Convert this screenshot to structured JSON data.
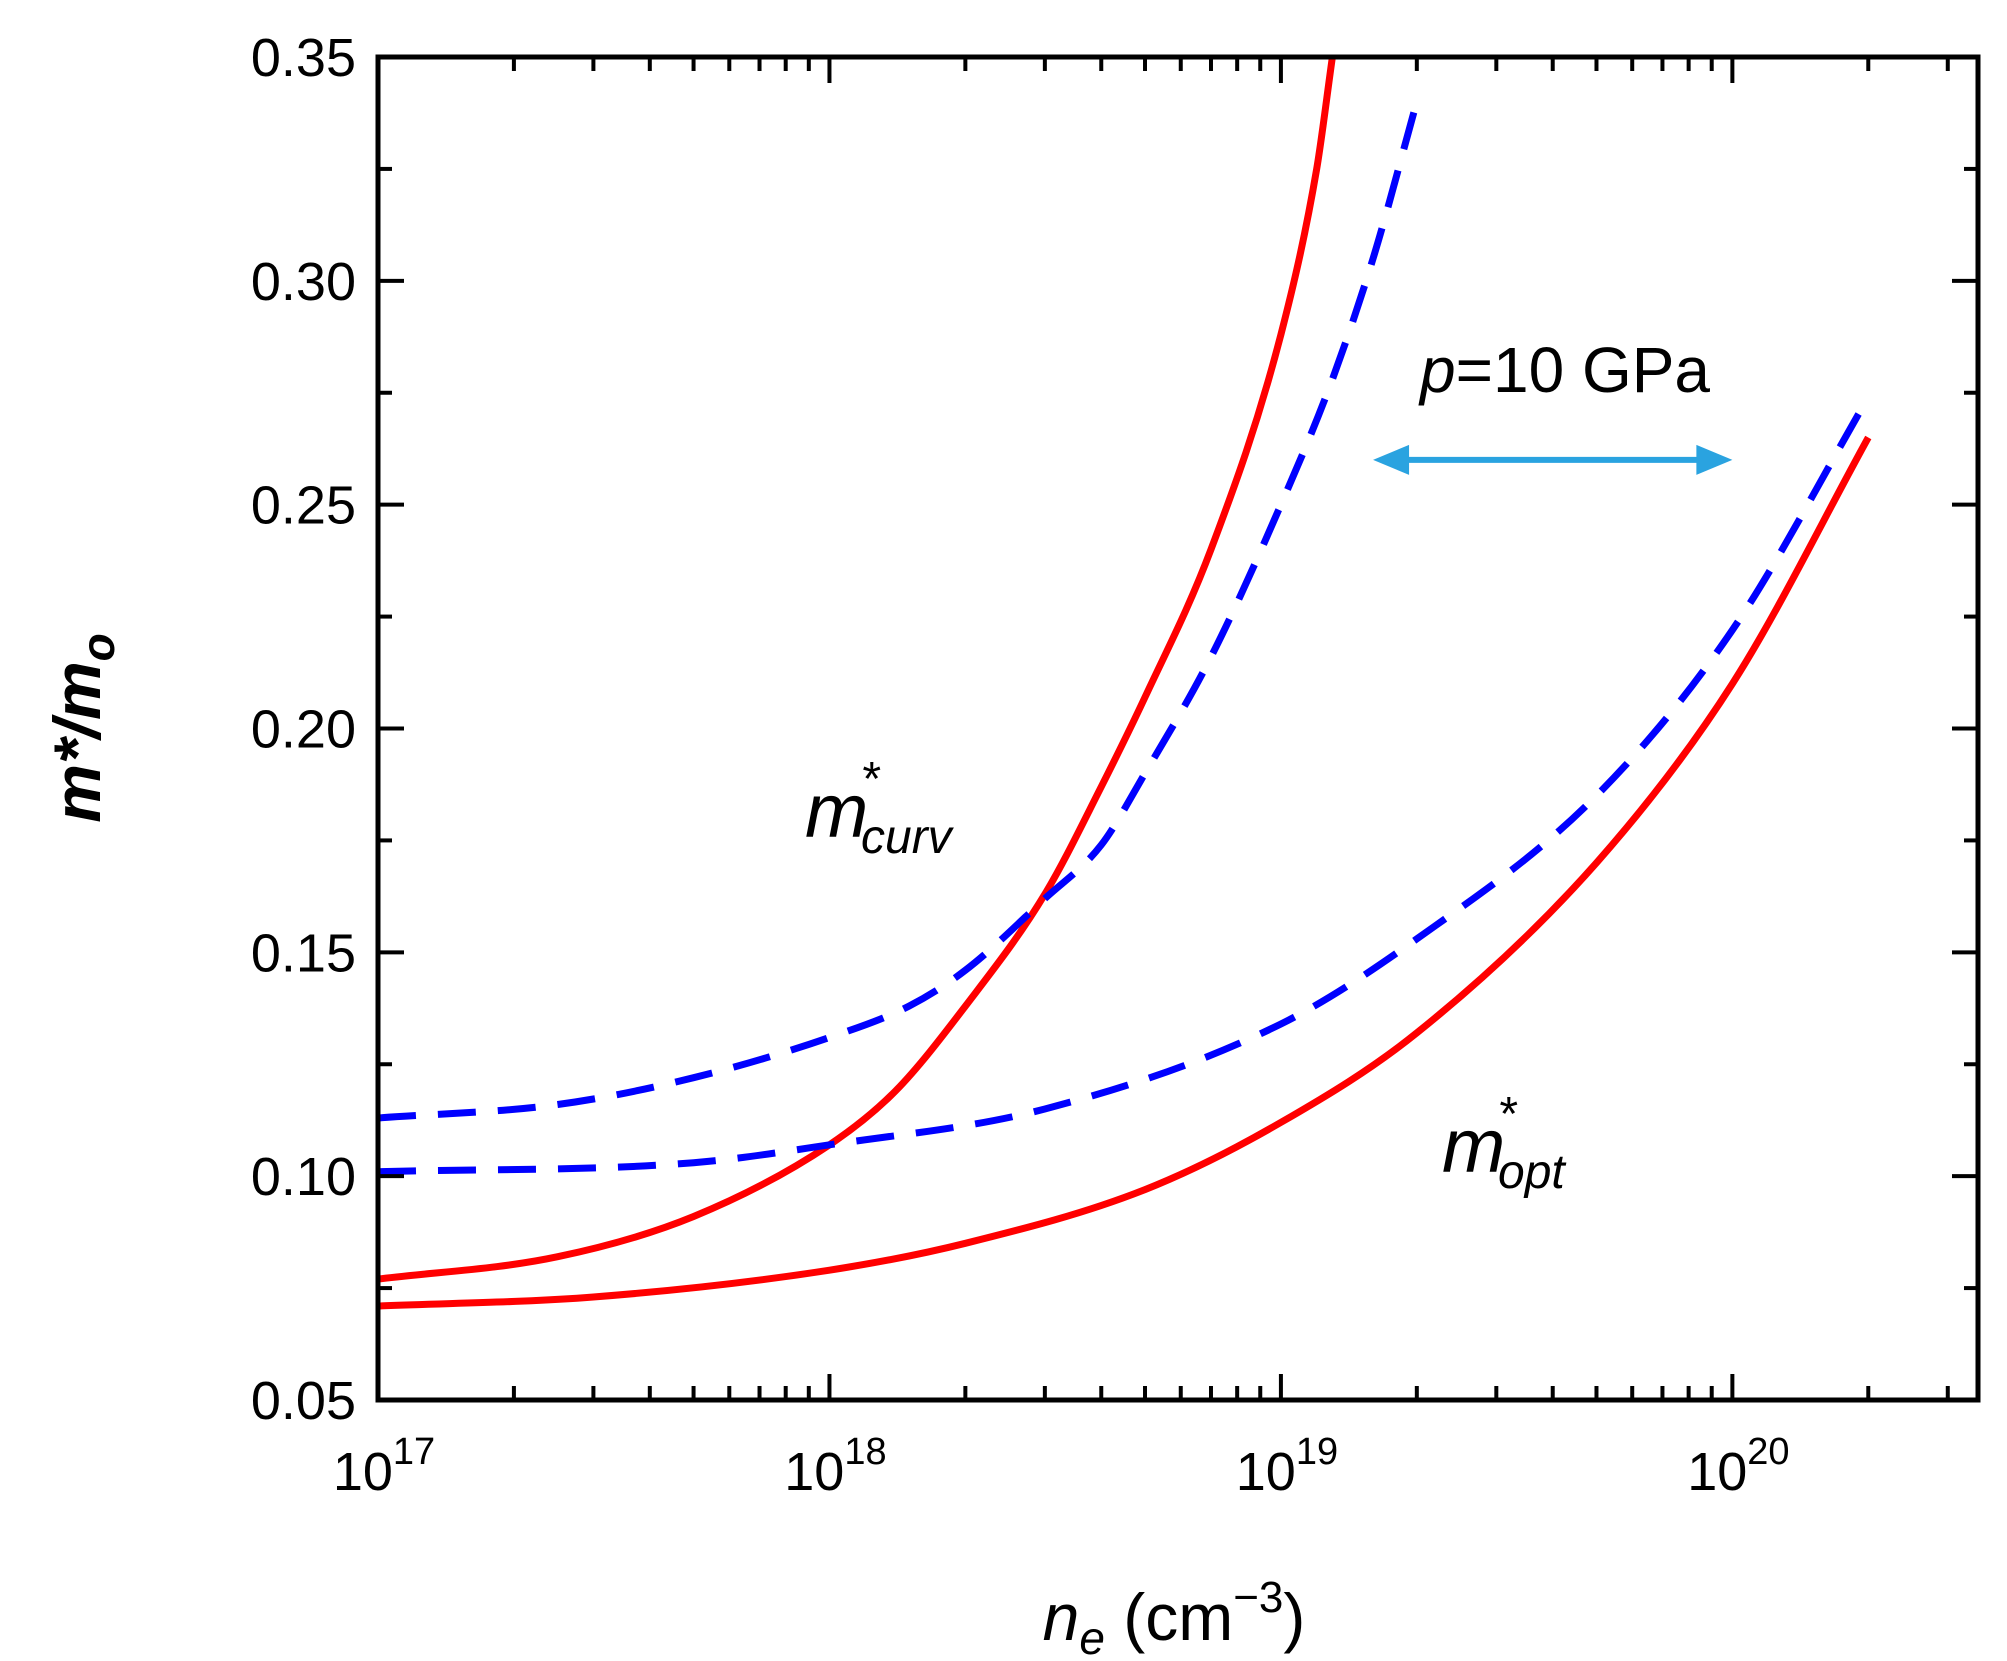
{
  "chart_data": {
    "type": "line",
    "title": "",
    "xscale": "log",
    "xlim": [
      1e+17,
      3.5e+20
    ],
    "ylim": [
      0.05,
      0.35
    ],
    "xlabel": {
      "main": "n",
      "sub": "e",
      "unit": " (cm",
      "sup": "−3",
      "close": ")"
    },
    "ylabel": {
      "main": "m*/m",
      "sub": "o"
    },
    "xticks": [
      {
        "value": 1e+17,
        "base": "10",
        "exp": "17"
      },
      {
        "value": 1e+18,
        "base": "10",
        "exp": "18"
      },
      {
        "value": 1e+19,
        "base": "10",
        "exp": "19"
      },
      {
        "value": 1e+20,
        "base": "10",
        "exp": "20"
      }
    ],
    "yticks": [
      {
        "value": 0.05,
        "label": "0.05"
      },
      {
        "value": 0.1,
        "label": "0.10"
      },
      {
        "value": 0.15,
        "label": "0.15"
      },
      {
        "value": 0.2,
        "label": "0.20"
      },
      {
        "value": 0.25,
        "label": "0.25"
      },
      {
        "value": 0.3,
        "label": "0.30"
      },
      {
        "value": 0.35,
        "label": "0.35"
      }
    ],
    "series": [
      {
        "name": "m*curv (solid)",
        "color": "#ff0000",
        "style": "solid",
        "x": [
          1e+17,
          2.5e+17,
          5e+17,
          1e+18,
          1.4e+18,
          2e+18,
          3e+18,
          4e+18,
          5e+18,
          7e+18,
          1e+19,
          1.2e+19,
          1.3e+19
        ],
        "y": [
          0.077,
          0.082,
          0.091,
          0.107,
          0.119,
          0.138,
          0.163,
          0.187,
          0.207,
          0.24,
          0.288,
          0.325,
          0.35
        ]
      },
      {
        "name": "m*curv (dashed)",
        "color": "#0000ff",
        "style": "dashed",
        "x": [
          1e+17,
          2.5e+17,
          5e+17,
          1e+18,
          1.5e+18,
          2e+18,
          3e+18,
          4e+18,
          5e+18,
          7e+18,
          1e+19,
          1.3e+19,
          1.6e+19,
          2e+19
        ],
        "y": [
          0.113,
          0.116,
          0.122,
          0.131,
          0.138,
          0.146,
          0.162,
          0.174,
          0.19,
          0.216,
          0.25,
          0.278,
          0.305,
          0.34
        ]
      },
      {
        "name": "m*opt (solid)",
        "color": "#ff0000",
        "style": "solid",
        "x": [
          1e+17,
          3e+17,
          1e+18,
          2e+18,
          5e+18,
          1e+19,
          2e+19,
          5e+19,
          1e+20,
          2e+20
        ],
        "y": [
          0.071,
          0.073,
          0.079,
          0.085,
          0.097,
          0.112,
          0.132,
          0.17,
          0.21,
          0.265
        ]
      },
      {
        "name": "m*opt (dashed)",
        "color": "#0000ff",
        "style": "dashed",
        "x": [
          1e+17,
          5e+17,
          1e+18,
          3e+18,
          1e+19,
          2e+19,
          5e+19,
          1e+20,
          2e+20
        ],
        "y": [
          0.101,
          0.103,
          0.107,
          0.115,
          0.134,
          0.153,
          0.185,
          0.222,
          0.274
        ]
      }
    ],
    "annotations": {
      "curv": {
        "main": "m",
        "sup": "*",
        "sub": "curv"
      },
      "opt": {
        "main": "m",
        "sup": "*",
        "sub": "opt"
      },
      "pressure": {
        "italic": "p",
        "rest": "=10 GPa"
      },
      "arrow": {
        "x_from": 1.6e+19,
        "x_to": 1e+20,
        "y": 0.26,
        "color": "#2aa3e0"
      }
    }
  }
}
